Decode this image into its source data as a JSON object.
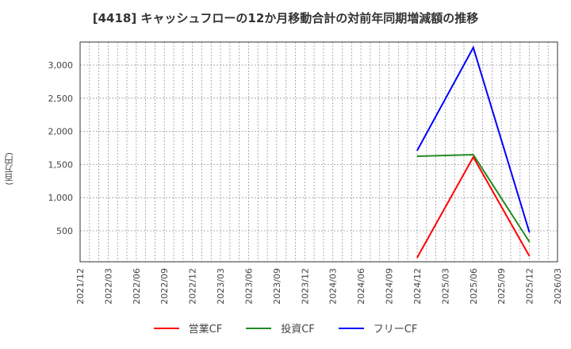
{
  "chart_data": {
    "type": "line",
    "title": "[4418]  キャッシュフローの12か月移動合計の対前年同期増減額の推移",
    "xlabel": "",
    "ylabel": "(百万円)",
    "x_ticks": [
      "2021/12",
      "2022/03",
      "2022/06",
      "2022/09",
      "2022/12",
      "2023/03",
      "2023/06",
      "2023/09",
      "2023/12",
      "2024/03",
      "2024/06",
      "2024/09",
      "2024/12",
      "2025/03",
      "2025/06",
      "2025/09",
      "2025/12",
      "2026/03"
    ],
    "y_ticks": [
      500,
      1000,
      1500,
      2000,
      2500,
      3000
    ],
    "y_tick_labels": [
      "500",
      "1,000",
      "1,500",
      "2,000",
      "2,500",
      "3,000"
    ],
    "ylim": [
      30,
      3300
    ],
    "grid": true,
    "legend_position": "bottom",
    "x": [
      "2024/12",
      "2025/06",
      "2025/12"
    ],
    "series": [
      {
        "name": "営業CF",
        "color": "#ff0000",
        "values": [
          93,
          1612,
          117
        ]
      },
      {
        "name": "投資CF",
        "color": "#228b22",
        "values": [
          1624,
          1648,
          333
        ]
      },
      {
        "name": "フリーCF",
        "color": "#0000ff",
        "values": [
          1708,
          3263,
          476
        ]
      }
    ]
  },
  "legend": [
    {
      "label": "営業CF",
      "color": "#ff0000"
    },
    {
      "label": "投資CF",
      "color": "#228b22"
    },
    {
      "label": "フリーCF",
      "color": "#0000ff"
    }
  ]
}
